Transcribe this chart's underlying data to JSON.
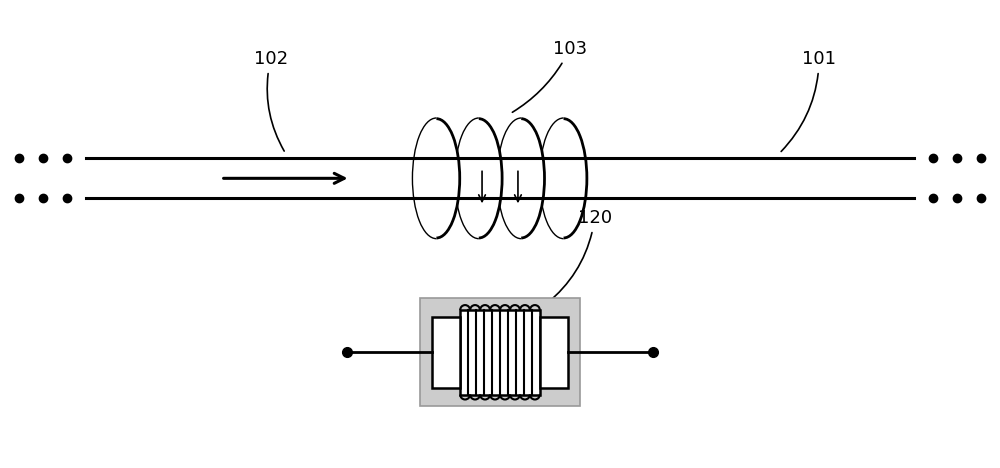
{
  "bg_color": "#ffffff",
  "line_color": "#000000",
  "gray_color": "#999999",
  "light_gray": "#cccccc",
  "label_101": "101",
  "label_102": "102",
  "label_103": "103",
  "label_120": "120"
}
